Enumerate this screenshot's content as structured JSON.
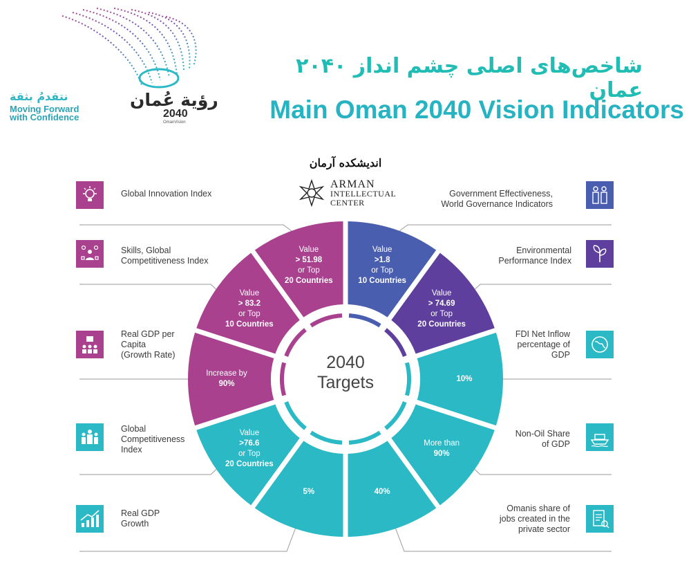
{
  "header": {
    "title_fa": "شاخص‌های اصلی چشم انداز ۲۰۴۰ عمان",
    "title_en": "Main Oman 2040 Vision Indicators"
  },
  "logo": {
    "tagline_ar": "نتقدمُ بثقة",
    "tagline_en_1": "Moving Forward",
    "tagline_en_2": "with Confidence",
    "vision_ar": "رؤية عُمان",
    "vision_year": "2040",
    "vision_sub": "OmanVision"
  },
  "brand": {
    "name_fa": "اندیشکده آرمان",
    "name_en": "ARMAN",
    "sub_1": "INTELLECTUAL",
    "sub_2": "CENTER"
  },
  "center": {
    "line1": "2040",
    "line2": "Targets"
  },
  "colors": {
    "magenta": "#a9418f",
    "teal": "#2bb9c5",
    "blue": "#4a5eb0",
    "purple": "#5e3f9d"
  },
  "left_indicators": [
    {
      "label_1": "Global Innovation Index",
      "label_2": "",
      "label_3": "",
      "icon": "lightbulb-icon",
      "color": "#a9418f"
    },
    {
      "label_1": "Skills, Global",
      "label_2": "Competitiveness Index",
      "label_3": "",
      "icon": "skills-people-icon",
      "color": "#a9418f"
    },
    {
      "label_1": "Real GDP per",
      "label_2": "Capita",
      "label_3": "(Growth Rate)",
      "icon": "gdp-per-capita-icon",
      "color": "#a9418f"
    },
    {
      "label_1": "Global",
      "label_2": "Competitiveness",
      "label_3": "Index",
      "icon": "competition-people-icon",
      "color": "#2bb9c5"
    },
    {
      "label_1": "Real GDP",
      "label_2": "Growth",
      "label_3": "",
      "icon": "growth-chart-icon",
      "color": "#2bb9c5"
    }
  ],
  "right_indicators": [
    {
      "label_1": "Government Effectiveness,",
      "label_2": "World Governance Indicators",
      "label_3": "",
      "icon": "government-people-icon",
      "color": "#4a5eb0"
    },
    {
      "label_1": "Environmental",
      "label_2": "Performance Index",
      "label_3": "",
      "icon": "plant-icon",
      "color": "#5e3f9d"
    },
    {
      "label_1": "FDI Net Inflow",
      "label_2": "percentage of",
      "label_3": "GDP",
      "icon": "globe-icon",
      "color": "#2bb9c5"
    },
    {
      "label_1": "Non-Oil Share",
      "label_2": "of GDP",
      "label_3": "",
      "icon": "ship-icon",
      "color": "#2bb9c5"
    },
    {
      "label_1": "Omanis share of",
      "label_2": "jobs created in the",
      "label_3": "private sector",
      "icon": "job-document-icon",
      "color": "#2bb9c5"
    }
  ],
  "segments": [
    {
      "t1": "Value",
      "t2": "> 51.98",
      "t3": "or Top",
      "t4": "20 Countries",
      "color": "#a9418f"
    },
    {
      "t1": "Value",
      "t2": "> 83.2",
      "t3": "or Top",
      "t4": "10 Countries",
      "color": "#a9418f"
    },
    {
      "t1": "Increase by",
      "t2": "90%",
      "t3": "",
      "t4": "",
      "color": "#a9418f"
    },
    {
      "t1": "Value",
      "t2": ">76.6",
      "t3": "or Top",
      "t4": "20 Countries",
      "color": "#2bb9c5"
    },
    {
      "t1": "",
      "t2": "5%",
      "t3": "",
      "t4": "",
      "color": "#2bb9c5"
    },
    {
      "t1": "",
      "t2": "40%",
      "t3": "",
      "t4": "",
      "color": "#2bb9c5"
    },
    {
      "t1": "More than",
      "t2": "90%",
      "t3": "",
      "t4": "",
      "color": "#2bb9c5"
    },
    {
      "t1": "",
      "t2": "10%",
      "t3": "",
      "t4": "",
      "color": "#2bb9c5"
    },
    {
      "t1": "Value",
      "t2": "> 74.69",
      "t3": "or Top",
      "t4": "20 Countries",
      "color": "#5e3f9d"
    },
    {
      "t1": "Value",
      "t2": ">1.8",
      "t3": "or Top",
      "t4": "10 Countries",
      "color": "#4a5eb0"
    }
  ]
}
